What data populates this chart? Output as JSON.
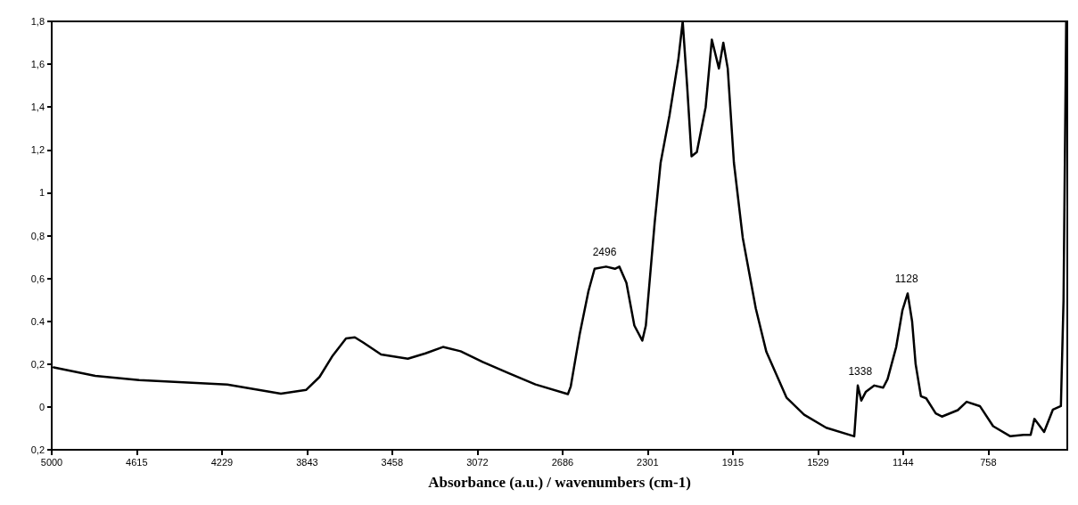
{
  "chart_data": {
    "type": "line",
    "xlabel": "Absorbance (a.u.) / wavenumbers (cm-1)",
    "xlim": [
      5000,
      400
    ],
    "xticks": [
      5000,
      4615,
      4229,
      3843,
      3458,
      3072,
      2686,
      2301,
      1915,
      1529,
      1144,
      758
    ],
    "ylim": [
      -0.2,
      1.8
    ],
    "yticks": [
      {
        "value": -0.2,
        "label": "0,2"
      },
      0,
      {
        "value": 0.2,
        "label": "0,2"
      },
      {
        "value": 0.4,
        "label": "0.4"
      },
      {
        "value": 0.6,
        "label": "0,6"
      },
      {
        "value": 0.8,
        "label": "0,8"
      },
      1,
      {
        "value": 1.2,
        "label": "1,2"
      },
      {
        "value": 1.4,
        "label": "1,4"
      },
      {
        "value": 1.6,
        "label": "1,6"
      },
      {
        "value": 1.8,
        "label": "1,8"
      }
    ],
    "grid": false,
    "marker": "none",
    "line_style": "solid",
    "annotations": [
      {
        "text": "2496",
        "x": 2496,
        "y": 0.655
      },
      {
        "text": "1338",
        "x": 1338,
        "y": 0.1
      },
      {
        "text": "1128",
        "x": 1128,
        "y": 0.53
      }
    ],
    "series": [
      {
        "color": "#000000",
        "x": [
          4991,
          4803,
          4604,
          4205,
          3962,
          3847,
          3787,
          3727,
          3667,
          3627,
          3588,
          3508,
          3387,
          3307,
          3228,
          3148,
          3048,
          2929,
          2809,
          2662,
          2649,
          2609,
          2569,
          2541,
          2489,
          2449,
          2429,
          2397,
          2361,
          2325,
          2309,
          2269,
          2242,
          2202,
          2162,
          2142,
          2122,
          2102,
          2078,
          2038,
          2010,
          1978,
          1958,
          1938,
          1910,
          1870,
          1811,
          1763,
          1672,
          1592,
          1492,
          1365,
          1349,
          1333,
          1313,
          1274,
          1234,
          1214,
          1175,
          1147,
          1123,
          1103,
          1087,
          1063,
          1039,
          996,
          968,
          896,
          856,
          796,
          736,
          658,
          598,
          566,
          549,
          505,
          465,
          429,
          417,
          405
        ],
        "values": [
          0.185,
          0.145,
          0.125,
          0.105,
          0.062,
          0.08,
          0.14,
          0.24,
          0.32,
          0.325,
          0.3,
          0.245,
          0.225,
          0.25,
          0.28,
          0.26,
          0.21,
          0.157,
          0.105,
          0.06,
          0.096,
          0.337,
          0.54,
          0.645,
          0.655,
          0.645,
          0.655,
          0.58,
          0.38,
          0.31,
          0.38,
          0.86,
          1.14,
          1.36,
          1.62,
          1.8,
          1.5,
          1.17,
          1.19,
          1.4,
          1.715,
          1.58,
          1.7,
          1.58,
          1.14,
          0.79,
          0.46,
          0.257,
          0.044,
          -0.036,
          -0.097,
          -0.137,
          0.1,
          0.03,
          0.07,
          0.1,
          0.09,
          0.13,
          0.28,
          0.45,
          0.53,
          0.4,
          0.2,
          0.05,
          0.04,
          -0.03,
          -0.045,
          -0.015,
          0.024,
          0.004,
          -0.09,
          -0.137,
          -0.13,
          -0.13,
          -0.056,
          -0.117,
          -0.012,
          0.004,
          0.5,
          1.8
        ]
      }
    ]
  }
}
